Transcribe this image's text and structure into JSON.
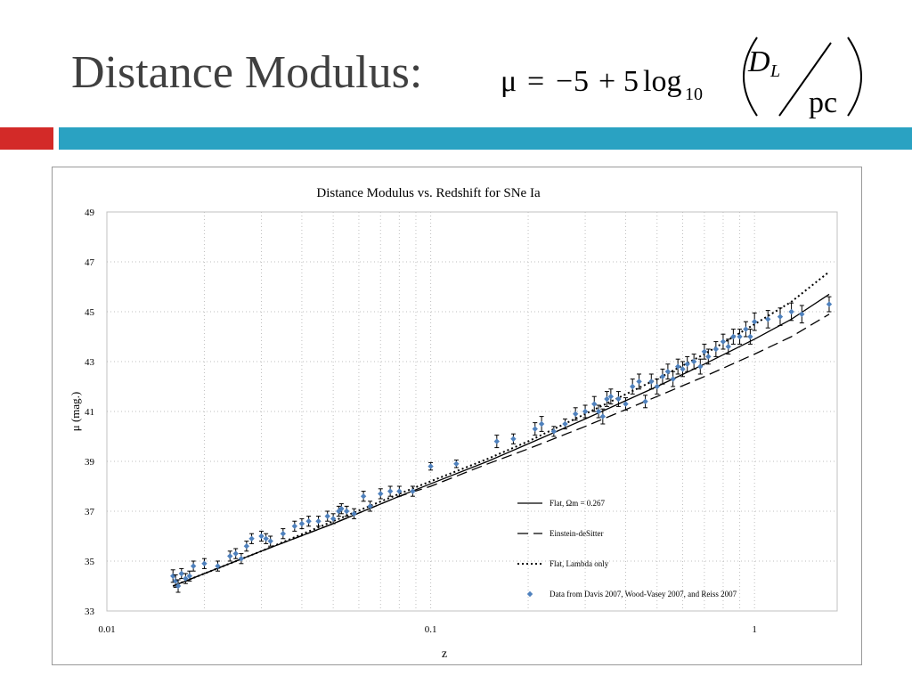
{
  "slide": {
    "title": "Distance Modulus:",
    "formula": {
      "mu": "μ",
      "equals": "=",
      "minus": "−",
      "five_a": "5",
      "plus": "+",
      "five_b": "5",
      "log": "log",
      "log_base": "10",
      "numerator": "D",
      "numerator_sub": "L",
      "denominator": "pc"
    }
  },
  "colors": {
    "title_text": "#404040",
    "accent_red": "#d32a28",
    "accent_blue": "#2aa2c2",
    "data_point": "#4f81bd",
    "model_lines": "#000000"
  },
  "chart_data": {
    "type": "scatter",
    "title": "Distance Modulus vs. Redshift for SNe Ia",
    "xlabel": "z",
    "ylabel": "μ (mag.)",
    "xscale": "log",
    "xlim": [
      0.01,
      1.8
    ],
    "ylim": [
      33,
      49
    ],
    "xticks": [
      0.01,
      0.1,
      1
    ],
    "xtick_labels": [
      "0.01",
      "0.1",
      "1"
    ],
    "yticks": [
      33,
      35,
      37,
      39,
      41,
      43,
      45,
      47,
      49
    ],
    "ytick_labels": [
      "33",
      "35",
      "37",
      "39",
      "41",
      "43",
      "45",
      "47",
      "49"
    ],
    "grid": "dotted, both axes",
    "legend_position": "lower-right",
    "legend": [
      "Flat, Ωm = 0.267",
      "Einstein-deSitter",
      "Flat, Lambda only",
      "Data from Davis 2007, Wood-Vasey 2007, and Reiss 2007"
    ],
    "series": [
      {
        "name": "Flat, Ωm = 0.267",
        "style": "solid",
        "x": [
          0.016,
          0.02,
          0.03,
          0.05,
          0.08,
          0.1,
          0.15,
          0.2,
          0.3,
          0.5,
          0.7,
          1.0,
          1.3,
          1.7
        ],
        "y": [
          34.0,
          34.5,
          35.4,
          36.5,
          37.6,
          38.1,
          39.0,
          39.7,
          40.7,
          42.0,
          42.9,
          43.9,
          44.7,
          45.7
        ]
      },
      {
        "name": "Einstein-deSitter",
        "style": "dashed",
        "x": [
          0.016,
          0.02,
          0.03,
          0.05,
          0.08,
          0.1,
          0.15,
          0.2,
          0.3,
          0.5,
          0.7,
          1.0,
          1.3,
          1.7
        ],
        "y": [
          34.0,
          34.5,
          35.4,
          36.5,
          37.6,
          38.0,
          38.9,
          39.5,
          40.4,
          41.6,
          42.4,
          43.3,
          44.0,
          44.9
        ]
      },
      {
        "name": "Flat, Lambda only",
        "style": "dotted",
        "x": [
          0.016,
          0.02,
          0.03,
          0.05,
          0.08,
          0.1,
          0.15,
          0.2,
          0.3,
          0.5,
          0.7,
          1.0,
          1.3,
          1.7
        ],
        "y": [
          34.0,
          34.5,
          35.4,
          36.6,
          37.7,
          38.2,
          39.1,
          39.8,
          40.9,
          42.3,
          43.3,
          44.5,
          45.4,
          46.6
        ]
      },
      {
        "name": "Data from Davis 2007, Wood-Vasey 2007, and Reiss 2007",
        "style": "points",
        "points": [
          [
            0.016,
            34.4,
            0.25
          ],
          [
            0.0163,
            34.2,
            0.25
          ],
          [
            0.0166,
            34.0,
            0.25
          ],
          [
            0.017,
            34.5,
            0.2
          ],
          [
            0.0175,
            34.3,
            0.2
          ],
          [
            0.018,
            34.4,
            0.2
          ],
          [
            0.0185,
            34.8,
            0.2
          ],
          [
            0.02,
            34.9,
            0.2
          ],
          [
            0.022,
            34.8,
            0.2
          ],
          [
            0.024,
            35.2,
            0.2
          ],
          [
            0.025,
            35.3,
            0.2
          ],
          [
            0.026,
            35.1,
            0.2
          ],
          [
            0.027,
            35.6,
            0.2
          ],
          [
            0.028,
            35.9,
            0.2
          ],
          [
            0.03,
            36.0,
            0.2
          ],
          [
            0.031,
            35.9,
            0.2
          ],
          [
            0.032,
            35.8,
            0.2
          ],
          [
            0.035,
            36.1,
            0.2
          ],
          [
            0.038,
            36.4,
            0.2
          ],
          [
            0.04,
            36.5,
            0.2
          ],
          [
            0.042,
            36.6,
            0.2
          ],
          [
            0.045,
            36.6,
            0.2
          ],
          [
            0.048,
            36.8,
            0.2
          ],
          [
            0.05,
            36.7,
            0.2
          ],
          [
            0.052,
            37.0,
            0.2
          ],
          [
            0.053,
            37.1,
            0.2
          ],
          [
            0.055,
            37.0,
            0.2
          ],
          [
            0.058,
            36.9,
            0.2
          ],
          [
            0.062,
            37.6,
            0.2
          ],
          [
            0.065,
            37.2,
            0.2
          ],
          [
            0.07,
            37.7,
            0.2
          ],
          [
            0.075,
            37.8,
            0.2
          ],
          [
            0.08,
            37.8,
            0.2
          ],
          [
            0.088,
            37.8,
            0.2
          ],
          [
            0.1,
            38.8,
            0.15
          ],
          [
            0.12,
            38.9,
            0.15
          ],
          [
            0.16,
            39.8,
            0.25
          ],
          [
            0.18,
            39.9,
            0.2
          ],
          [
            0.21,
            40.3,
            0.25
          ],
          [
            0.22,
            40.5,
            0.3
          ],
          [
            0.24,
            40.2,
            0.2
          ],
          [
            0.26,
            40.5,
            0.2
          ],
          [
            0.28,
            40.9,
            0.25
          ],
          [
            0.3,
            41.0,
            0.25
          ],
          [
            0.32,
            41.3,
            0.3
          ],
          [
            0.33,
            41.0,
            0.25
          ],
          [
            0.34,
            40.8,
            0.3
          ],
          [
            0.35,
            41.5,
            0.3
          ],
          [
            0.36,
            41.6,
            0.3
          ],
          [
            0.38,
            41.5,
            0.3
          ],
          [
            0.4,
            41.3,
            0.25
          ],
          [
            0.42,
            42.0,
            0.3
          ],
          [
            0.44,
            42.2,
            0.3
          ],
          [
            0.46,
            41.4,
            0.25
          ],
          [
            0.48,
            42.2,
            0.3
          ],
          [
            0.5,
            42.0,
            0.3
          ],
          [
            0.52,
            42.4,
            0.3
          ],
          [
            0.54,
            42.6,
            0.3
          ],
          [
            0.56,
            42.3,
            0.3
          ],
          [
            0.58,
            42.8,
            0.3
          ],
          [
            0.6,
            42.7,
            0.3
          ],
          [
            0.62,
            42.9,
            0.3
          ],
          [
            0.65,
            43.0,
            0.3
          ],
          [
            0.68,
            42.8,
            0.3
          ],
          [
            0.7,
            43.4,
            0.3
          ],
          [
            0.72,
            43.2,
            0.3
          ],
          [
            0.76,
            43.5,
            0.3
          ],
          [
            0.8,
            43.8,
            0.3
          ],
          [
            0.83,
            43.6,
            0.3
          ],
          [
            0.86,
            44.0,
            0.3
          ],
          [
            0.9,
            44.0,
            0.3
          ],
          [
            0.94,
            44.3,
            0.3
          ],
          [
            0.97,
            44.0,
            0.3
          ],
          [
            1.0,
            44.6,
            0.35
          ],
          [
            1.1,
            44.7,
            0.35
          ],
          [
            1.2,
            44.8,
            0.35
          ],
          [
            1.3,
            45.0,
            0.35
          ],
          [
            1.4,
            44.9,
            0.35
          ],
          [
            1.7,
            45.3,
            0.3
          ]
        ]
      }
    ]
  }
}
